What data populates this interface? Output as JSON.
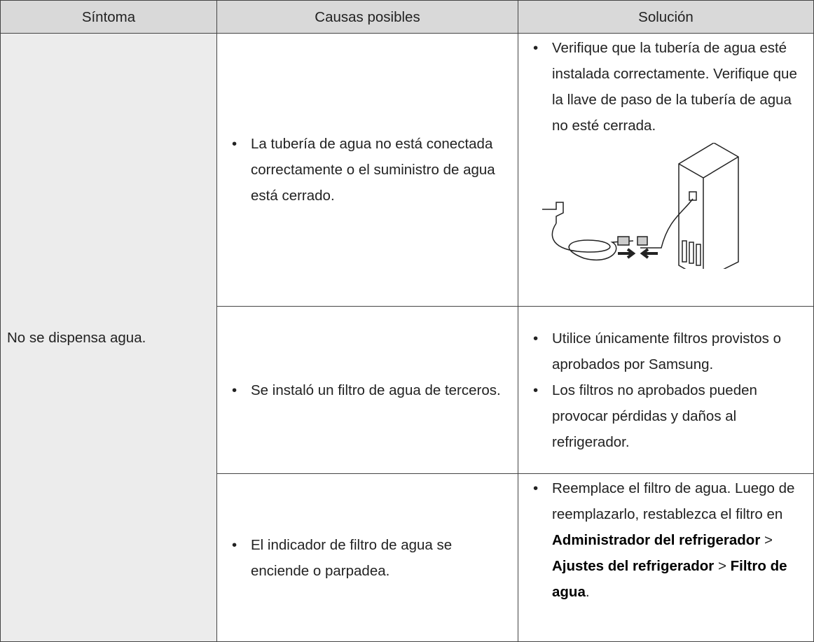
{
  "table": {
    "header": [
      "Síntoma",
      "Causas posibles",
      "Solución"
    ],
    "symptom": "No se dispensa agua.",
    "rows": [
      {
        "cause": "La tubería de agua no está conectada correctamente o el suministro de agua está cerrado.",
        "solution": [
          "Verifique que la tubería de agua esté instalada correctamente. Verifique que la llave de paso de la tubería de agua no esté cerrada."
        ]
      },
      {
        "cause": "Se instaló un filtro de agua de terceros.",
        "solution": [
          "Utilice únicamente filtros provistos o aprobados por Samsung.",
          "Los filtros no aprobados pueden provocar pérdidas y daños al refrigerador."
        ]
      },
      {
        "cause": "El indicador de filtro de agua se enciende o parpadea.",
        "solution": [
          [
            "Reemplace el filtro de agua. Luego de reemplazarlo, restablezca el filtro en ",
            "Administrador del refrigerador",
            " > ",
            "Ajustes del refrigerador",
            " > ",
            "Filtro de agua",
            "."
          ]
        ]
      }
    ]
  }
}
